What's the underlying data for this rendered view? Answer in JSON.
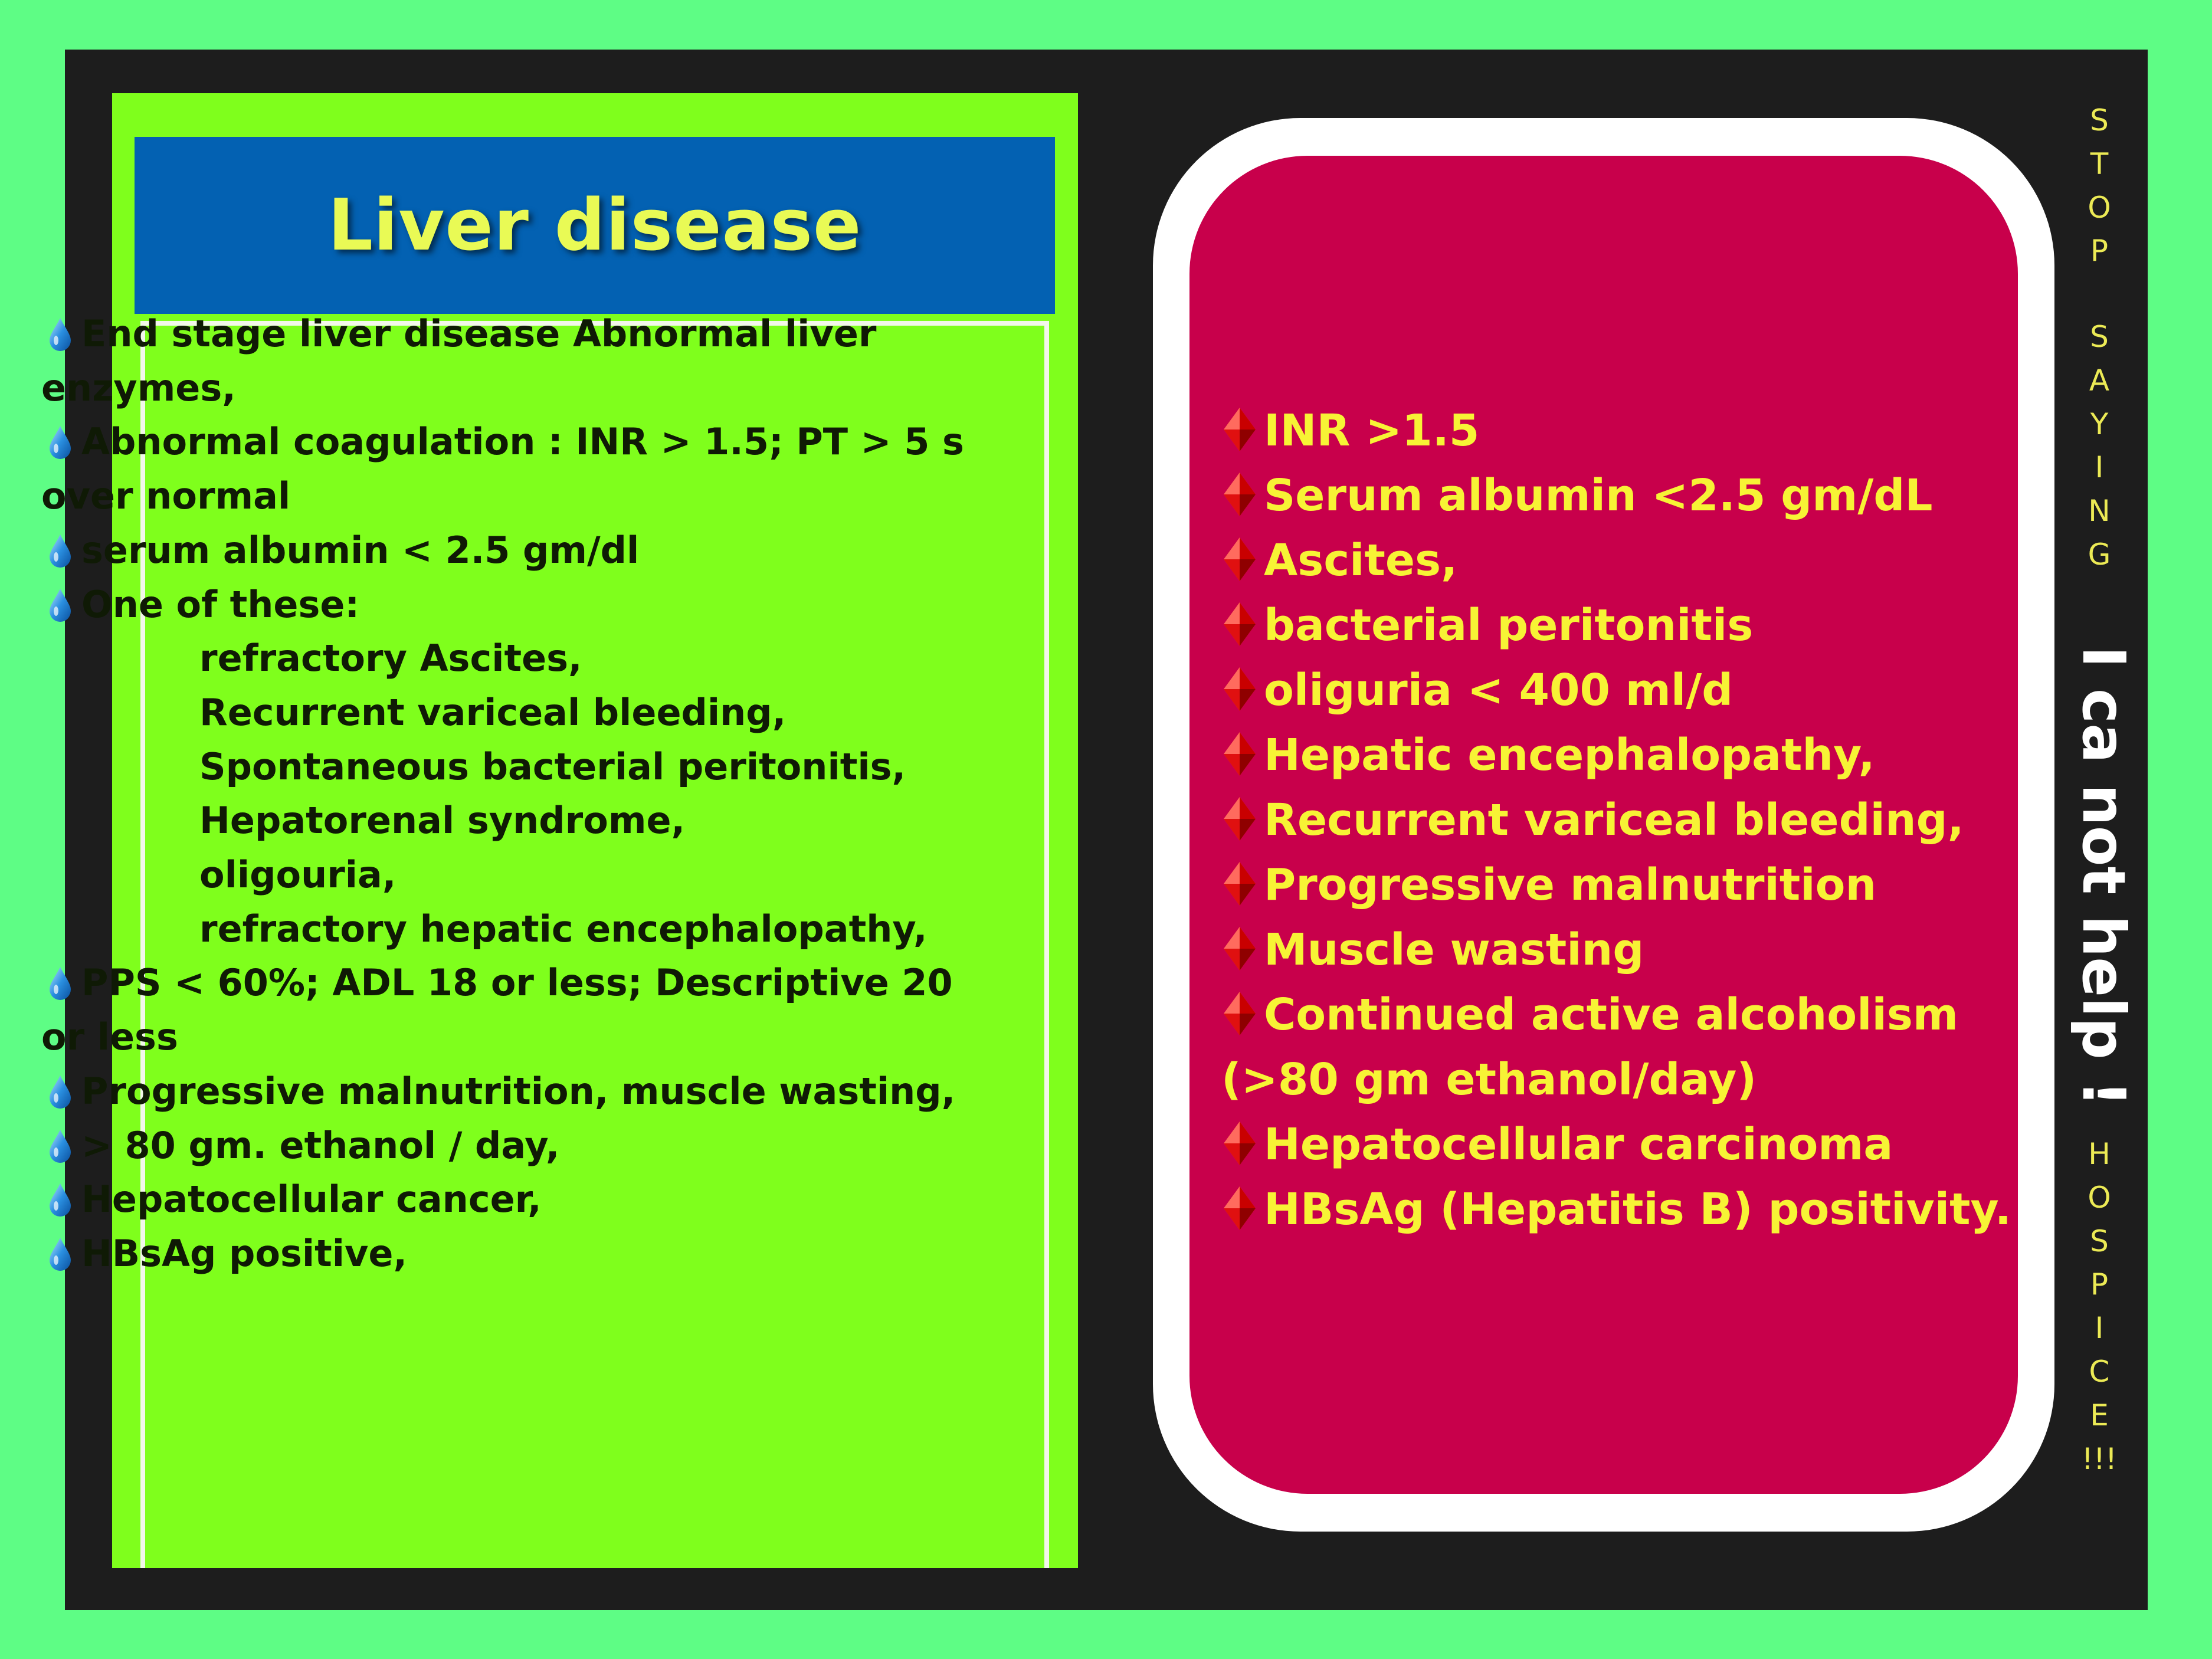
{
  "left": {
    "title": "Liver disease",
    "items": [
      {
        "bullet": true,
        "text": "End stage liver disease Abnormal liver"
      },
      {
        "bullet": false,
        "text": "enzymes,"
      },
      {
        "bullet": true,
        "text": "Abnormal coagulation : INR > 1.5; PT > 5 s"
      },
      {
        "bullet": false,
        "text": "over normal"
      },
      {
        "bullet": true,
        "text": "serum albumin < 2.5 gm/dl"
      },
      {
        "bullet": true,
        "text": "One of these:"
      },
      {
        "bullet": false,
        "sub": true,
        "text": "refractory Ascites,"
      },
      {
        "bullet": false,
        "sub": true,
        "text": "Recurrent variceal bleeding,"
      },
      {
        "bullet": false,
        "sub": true,
        "text": "Spontaneous bacterial peritonitis,"
      },
      {
        "bullet": false,
        "sub": true,
        "text": "Hepatorenal syndrome,"
      },
      {
        "bullet": false,
        "sub": true,
        "text": "oligouria,"
      },
      {
        "bullet": false,
        "sub": true,
        "text": "refractory hepatic encephalopathy,"
      },
      {
        "bullet": true,
        "text": "PPS < 60%; ADL 18 or less; Descriptive 20"
      },
      {
        "bullet": false,
        "text": "or less"
      },
      {
        "bullet": true,
        "text": "Progressive malnutrition, muscle wasting,"
      },
      {
        "bullet": true,
        "text": "> 80 gm. ethanol / day,"
      },
      {
        "bullet": true,
        "text": "Hepatocellular cancer,"
      },
      {
        "bullet": true,
        "text": "HBsAg positive,"
      }
    ]
  },
  "right": {
    "items": [
      {
        "bullet": true,
        "text": "INR >1.5"
      },
      {
        "bullet": true,
        "text": "Serum albumin <2.5 gm/dL"
      },
      {
        "bullet": true,
        "text": "Ascites,"
      },
      {
        "bullet": true,
        "text": "bacterial peritonitis"
      },
      {
        "bullet": true,
        "text": "oliguria < 400 ml/d"
      },
      {
        "bullet": true,
        "text": "Hepatic encephalopathy,"
      },
      {
        "bullet": true,
        "text": "Recurrent variceal bleeding,"
      },
      {
        "bullet": true,
        "text": "Progressive malnutrition"
      },
      {
        "bullet": true,
        "text": "Muscle wasting"
      },
      {
        "bullet": true,
        "text": "Continued active alcoholism"
      },
      {
        "bullet": false,
        "text": "(>80 gm ethanol/day)"
      },
      {
        "bullet": true,
        "text": "Hepatocellular carcinoma"
      },
      {
        "bullet": true,
        "text": "HBsAg (Hepatitis B) positivity."
      }
    ]
  },
  "sidebar": {
    "stop": "STOP",
    "saying": "SAYING",
    "help": "I ca not help !",
    "hospice": [
      "H",
      "O",
      "S",
      "P",
      "I",
      "C",
      "E",
      "!!!"
    ]
  },
  "colors": {
    "background": "#5efd85",
    "frame": "#1d1d1d",
    "left_panel": "#7fff1c",
    "title_bar": "#0361b2",
    "title_text": "#e9fa55",
    "card_border": "#ffffff",
    "card_fill": "#c8004b",
    "card_text": "#f7f335",
    "side_text": "#ecea55"
  },
  "icons": {
    "left_bullet": "water-drop-icon",
    "right_bullet": "red-diamond-icon"
  }
}
